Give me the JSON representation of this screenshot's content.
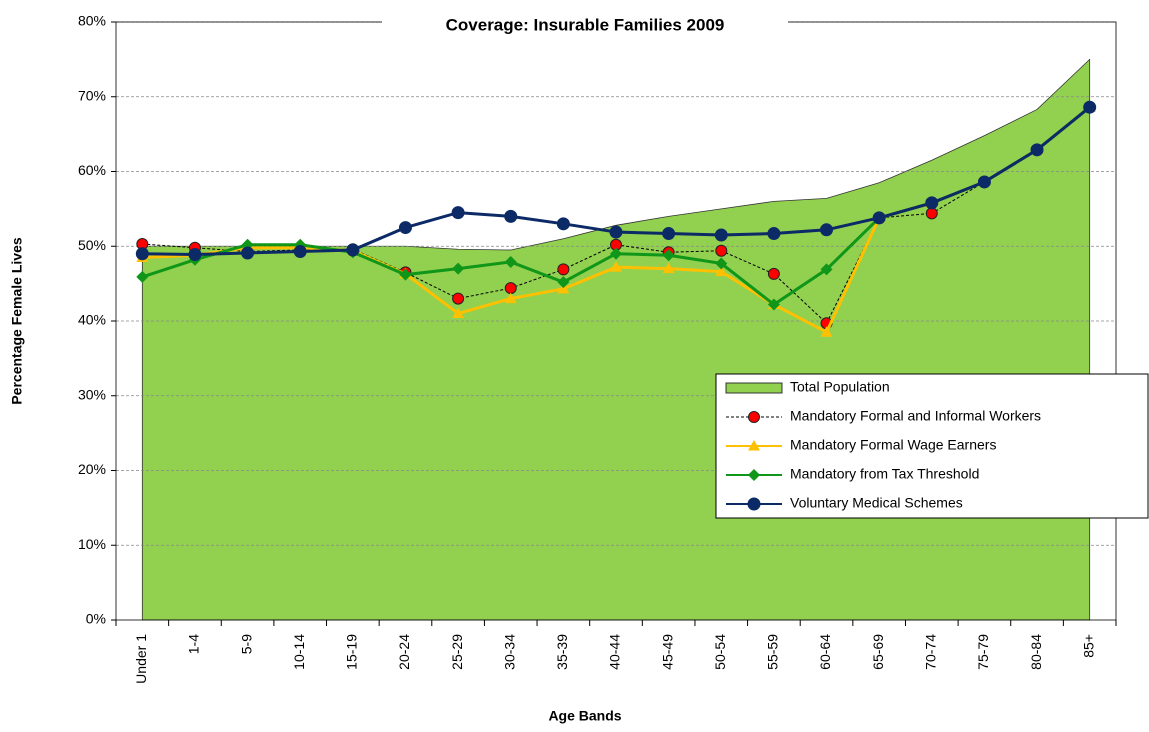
{
  "chart_data": {
    "type": "line",
    "title": "Coverage: Insurable Families 2009",
    "xlabel": "Age Bands",
    "ylabel": "Percentage  Female Lives",
    "categories": [
      "Under 1",
      "1-4",
      "5-9",
      "10-14",
      "15-19",
      "20-24",
      "25-29",
      "30-34",
      "35-39",
      "40-44",
      "45-49",
      "50-54",
      "55-59",
      "60-64",
      "65-69",
      "70-74",
      "75-79",
      "80-84",
      "85+"
    ],
    "ylim": [
      0,
      80
    ],
    "yticks": [
      {
        "value": 0,
        "label": "0%"
      },
      {
        "value": 10,
        "label": "10%"
      },
      {
        "value": 20,
        "label": "20%"
      },
      {
        "value": 30,
        "label": "30%"
      },
      {
        "value": 40,
        "label": "40%"
      },
      {
        "value": 50,
        "label": "50%"
      },
      {
        "value": 60,
        "label": "60%"
      },
      {
        "value": 70,
        "label": "70%"
      },
      {
        "value": 80,
        "label": "80%"
      }
    ],
    "grid": true,
    "legend": "right",
    "series": [
      {
        "name": "Total Population",
        "color": "#92d050",
        "marker": "area",
        "values": [
          50,
          50,
          50,
          50,
          50,
          50,
          49.6,
          49.5,
          51,
          52.8,
          54,
          55,
          56,
          56.4,
          58.5,
          61.5,
          64.8,
          68.3,
          75
        ]
      },
      {
        "name": "Mandatory Formal and Informal Workers",
        "color": "#ff0000",
        "marker": "circle",
        "dashed": true,
        "values": [
          50.3,
          49.8,
          49.3,
          49.5,
          49.6,
          46.5,
          43,
          44.4,
          46.9,
          50.2,
          49.2,
          49.4,
          46.3,
          39.7,
          53.8,
          54.4,
          58.6,
          62.9,
          68.6
        ]
      },
      {
        "name": "Mandatory Formal Wage Earners",
        "color": "#ffc000",
        "marker": "triangle",
        "values": [
          48.5,
          48.8,
          49.8,
          49.8,
          49.4,
          46.3,
          41,
          43,
          44.3,
          47.2,
          47,
          46.6,
          42.2,
          38.5,
          53.8,
          55.8,
          58.6,
          62.9,
          68.6
        ]
      },
      {
        "name": "Mandatory from Tax Threshold",
        "color": "#109618",
        "marker": "diamond",
        "values": [
          45.9,
          48.2,
          50.2,
          50.2,
          49.2,
          46.2,
          47,
          47.9,
          45.2,
          49,
          48.8,
          47.7,
          42.2,
          46.9,
          53.8,
          55.8,
          58.6,
          62.9,
          68.6
        ]
      },
      {
        "name": "Voluntary Medical Schemes",
        "color": "#0c2a66",
        "marker": "circle",
        "values": [
          49,
          48.9,
          49.1,
          49.3,
          49.5,
          52.5,
          54.5,
          54,
          53,
          51.9,
          51.7,
          51.5,
          51.7,
          52.2,
          53.8,
          55.8,
          58.6,
          62.9,
          68.6
        ]
      }
    ]
  }
}
